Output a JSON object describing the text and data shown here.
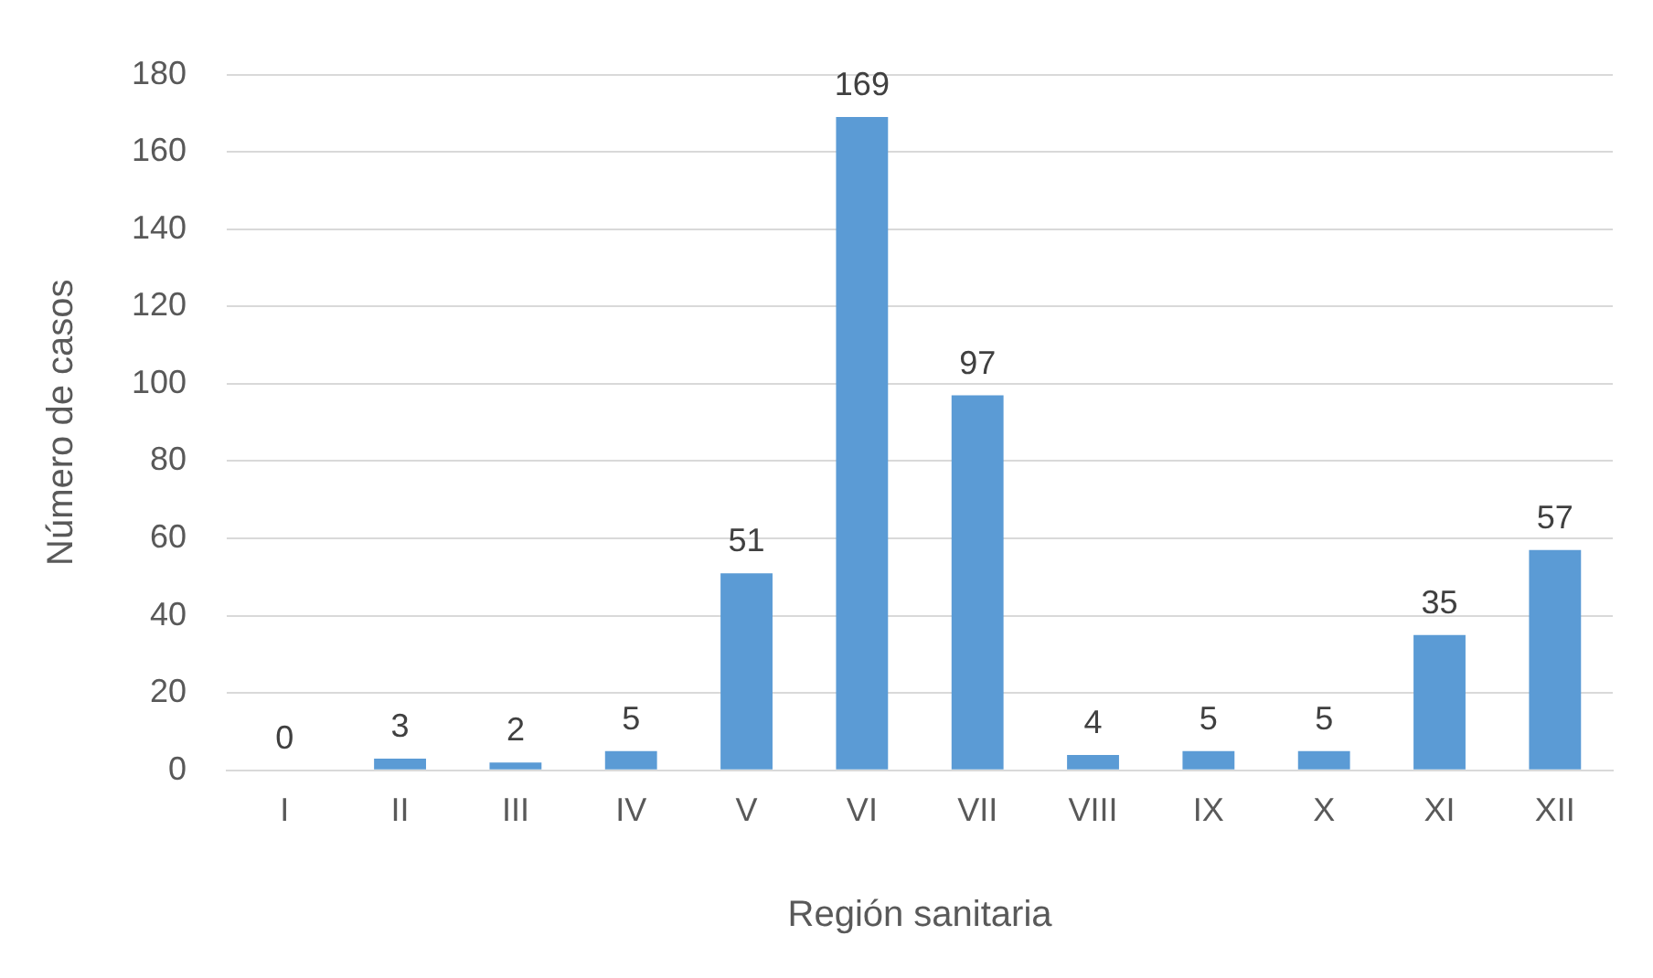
{
  "chart_data": {
    "type": "bar",
    "xlabel": "Región sanitaria",
    "ylabel": "Número de casos",
    "categories": [
      "I",
      "II",
      "III",
      "IV",
      "V",
      "VI",
      "VII",
      "VIII",
      "IX",
      "X",
      "XI",
      "XII"
    ],
    "values": [
      0,
      3,
      2,
      5,
      51,
      169,
      97,
      4,
      5,
      5,
      35,
      57
    ],
    "color": "#5b9bd5",
    "ylim": [
      0,
      180
    ],
    "yticks": [
      0,
      20,
      40,
      60,
      80,
      100,
      120,
      140,
      160,
      180
    ],
    "grid": "y",
    "data_labels": true
  }
}
